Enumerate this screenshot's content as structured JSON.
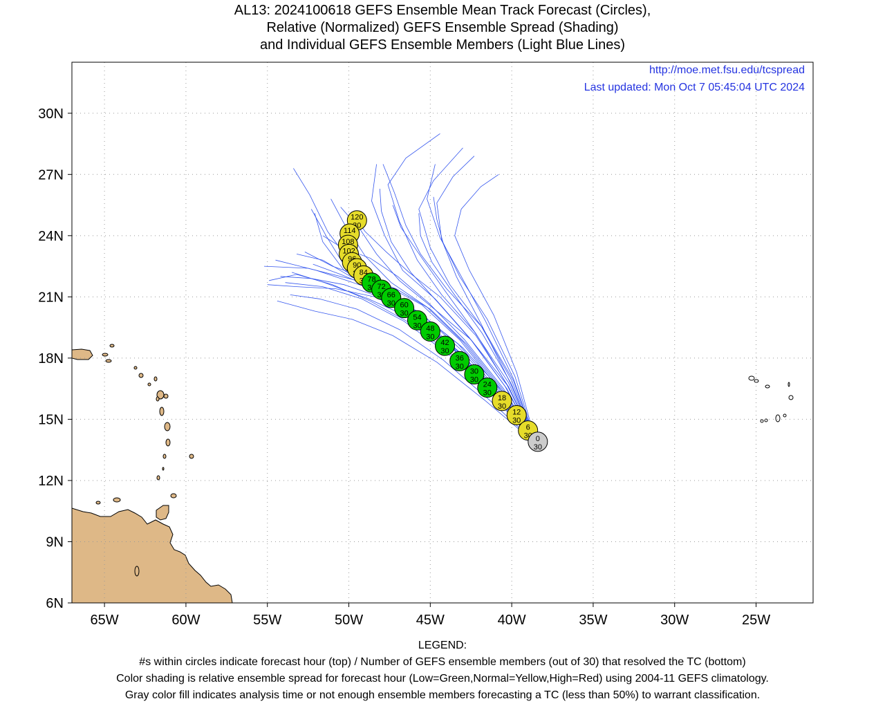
{
  "title": {
    "line1": "AL13: 2024100618 GEFS Ensemble Mean Track Forecast (Circles),",
    "line2": "Relative (Normalized) GEFS Ensemble Spread (Shading)",
    "line3": "and Individual GEFS Ensemble Members (Light Blue Lines)"
  },
  "url": "http://moe.met.fsu.edu/tcspread",
  "updated": "Last updated: Mon Oct 7 05:45:04 UTC 2024",
  "axes": {
    "lon_range": [
      -67,
      -21.5
    ],
    "lat_range": [
      6,
      32.5
    ],
    "lon_ticks": [
      -65,
      -60,
      -55,
      -50,
      -45,
      -40,
      -35,
      -30,
      -25
    ],
    "lon_labels": [
      "65W",
      "60W",
      "55W",
      "50W",
      "45W",
      "40W",
      "35W",
      "30W",
      "25W"
    ],
    "lat_ticks": [
      6,
      9,
      12,
      15,
      18,
      21,
      24,
      27,
      30
    ],
    "lat_labels": [
      "6N",
      "9N",
      "12N",
      "15N",
      "18N",
      "21N",
      "24N",
      "27N",
      "30N"
    ],
    "grid": true
  },
  "colors": {
    "green": "#00cc00",
    "yellow": "#e6dc2a",
    "gray": "#cccccc",
    "land": "#deb887",
    "member_line": "#3355ee"
  },
  "track": [
    {
      "hour": "0",
      "members": "30",
      "lon": -38.4,
      "lat": 13.9,
      "spread": "gray"
    },
    {
      "hour": "6",
      "members": "30",
      "lon": -39.0,
      "lat": 14.45,
      "spread": "yellow"
    },
    {
      "hour": "12",
      "members": "30",
      "lon": -39.7,
      "lat": 15.2,
      "spread": "yellow"
    },
    {
      "hour": "18",
      "members": "30",
      "lon": -40.6,
      "lat": 15.9,
      "spread": "yellow"
    },
    {
      "hour": "24",
      "members": "30",
      "lon": -41.5,
      "lat": 16.55,
      "spread": "green"
    },
    {
      "hour": "30",
      "members": "30",
      "lon": -42.3,
      "lat": 17.2,
      "spread": "green"
    },
    {
      "hour": "36",
      "members": "30",
      "lon": -43.2,
      "lat": 17.85,
      "spread": "green"
    },
    {
      "hour": "42",
      "members": "30",
      "lon": -44.1,
      "lat": 18.6,
      "spread": "green"
    },
    {
      "hour": "48",
      "members": "30",
      "lon": -45.0,
      "lat": 19.3,
      "spread": "green"
    },
    {
      "hour": "54",
      "members": "30",
      "lon": -45.8,
      "lat": 19.85,
      "spread": "green"
    },
    {
      "hour": "60",
      "members": "30",
      "lon": -46.6,
      "lat": 20.45,
      "spread": "green"
    },
    {
      "hour": "66",
      "members": "30",
      "lon": -47.4,
      "lat": 20.95,
      "spread": "green"
    },
    {
      "hour": "72",
      "members": "30",
      "lon": -48.0,
      "lat": 21.35,
      "spread": "green"
    },
    {
      "hour": "78",
      "members": "30",
      "lon": -48.6,
      "lat": 21.7,
      "spread": "green"
    },
    {
      "hour": "84",
      "members": "30",
      "lon": -49.1,
      "lat": 22.05,
      "spread": "yellow"
    },
    {
      "hour": "90",
      "members": "30",
      "lon": -49.5,
      "lat": 22.4,
      "spread": "yellow"
    },
    {
      "hour": "96",
      "members": "30",
      "lon": -49.8,
      "lat": 22.7,
      "spread": "yellow"
    },
    {
      "hour": "102",
      "members": "30",
      "lon": -50.0,
      "lat": 23.1,
      "spread": "yellow"
    },
    {
      "hour": "108",
      "members": "30",
      "lon": -50.05,
      "lat": 23.55,
      "spread": "yellow"
    },
    {
      "hour": "114",
      "members": "30",
      "lon": -49.95,
      "lat": 24.1,
      "spread": "yellow"
    },
    {
      "hour": "120",
      "members": "30",
      "lon": -49.5,
      "lat": 24.75,
      "spread": "yellow"
    }
  ],
  "members": [
    [
      [
        -38.5,
        13.8
      ],
      [
        -41,
        16.2
      ],
      [
        -43.5,
        18.5
      ],
      [
        -46,
        20.3
      ],
      [
        -49,
        21.5
      ],
      [
        -52,
        22.3
      ],
      [
        -54.5,
        22.8
      ]
    ],
    [
      [
        -38.5,
        13.8
      ],
      [
        -41.2,
        16.4
      ],
      [
        -44,
        18.8
      ],
      [
        -46.5,
        20.5
      ],
      [
        -49.5,
        21.8
      ],
      [
        -52.5,
        22.4
      ],
      [
        -55.2,
        22.5
      ]
    ],
    [
      [
        -38.5,
        13.8
      ],
      [
        -41,
        16.3
      ],
      [
        -43.8,
        18.6
      ],
      [
        -46.3,
        20
      ],
      [
        -48.8,
        20.9
      ],
      [
        -51.5,
        21.7
      ],
      [
        -53.5,
        22.2
      ]
    ],
    [
      [
        -38.5,
        13.8
      ],
      [
        -40.8,
        16.5
      ],
      [
        -43.2,
        18.9
      ],
      [
        -45.5,
        20.6
      ],
      [
        -47.8,
        21.6
      ],
      [
        -49.8,
        22.6
      ],
      [
        -51.3,
        24.2
      ],
      [
        -52.4,
        26
      ],
      [
        -53.4,
        27.3
      ]
    ],
    [
      [
        -38.5,
        13.8
      ],
      [
        -40.6,
        16.4
      ],
      [
        -43,
        18.8
      ],
      [
        -45.2,
        20.5
      ],
      [
        -47.4,
        21.7
      ],
      [
        -49,
        23
      ],
      [
        -50.3,
        24.6
      ],
      [
        -51.1,
        25.8
      ]
    ],
    [
      [
        -38.5,
        13.8
      ],
      [
        -40.4,
        16.6
      ],
      [
        -42.6,
        19
      ],
      [
        -44.7,
        20.9
      ],
      [
        -46.7,
        22.3
      ],
      [
        -47.8,
        24
      ],
      [
        -48.6,
        25.7
      ],
      [
        -48.3,
        27.5
      ]
    ],
    [
      [
        -38.5,
        13.8
      ],
      [
        -40.2,
        16.8
      ],
      [
        -42.3,
        19.3
      ],
      [
        -44.3,
        21.1
      ],
      [
        -45.8,
        22.8
      ],
      [
        -46.9,
        24.7
      ],
      [
        -47.6,
        26.5
      ],
      [
        -46.5,
        27.8
      ],
      [
        -44.4,
        29
      ]
    ],
    [
      [
        -38.5,
        13.8
      ],
      [
        -40,
        16.9
      ],
      [
        -41.9,
        19.6
      ],
      [
        -43.8,
        21.6
      ],
      [
        -45,
        23.4
      ],
      [
        -45.7,
        25.3
      ],
      [
        -44.8,
        26.7
      ],
      [
        -43,
        28.3
      ]
    ],
    [
      [
        -38.5,
        13.8
      ],
      [
        -39.8,
        17.1
      ],
      [
        -41.5,
        19.9
      ],
      [
        -43.2,
        22
      ],
      [
        -44.3,
        23.8
      ],
      [
        -44.6,
        25.6
      ],
      [
        -43.6,
        26.9
      ],
      [
        -42.3,
        27.9
      ]
    ],
    [
      [
        -38.5,
        13.8
      ],
      [
        -39.7,
        17.3
      ],
      [
        -41.1,
        20.1
      ],
      [
        -42.6,
        22.3
      ],
      [
        -43.5,
        24
      ],
      [
        -43.1,
        25.3
      ],
      [
        -41.9,
        26.4
      ],
      [
        -40.8,
        27
      ]
    ],
    [
      [
        -38.5,
        13.8
      ],
      [
        -39.9,
        16.9
      ],
      [
        -41.8,
        19.5
      ],
      [
        -44,
        21.4
      ],
      [
        -45.6,
        23.1
      ],
      [
        -46.5,
        24.5
      ],
      [
        -47.2,
        26.1
      ],
      [
        -47.9,
        27.5
      ]
    ],
    [
      [
        -38.5,
        13.8
      ],
      [
        -40.2,
        16.6
      ],
      [
        -42.5,
        18.9
      ],
      [
        -44.9,
        20.5
      ],
      [
        -46.9,
        21.8
      ],
      [
        -48.3,
        23.1
      ],
      [
        -49.3,
        24.3
      ],
      [
        -50.5,
        25.4
      ]
    ],
    [
      [
        -38.5,
        13.8
      ],
      [
        -40.5,
        16.3
      ],
      [
        -43,
        18.5
      ],
      [
        -45.5,
        20.1
      ],
      [
        -47.9,
        21.2
      ],
      [
        -49.9,
        22
      ],
      [
        -51.6,
        22.8
      ],
      [
        -53.2,
        23.1
      ]
    ],
    [
      [
        -38.5,
        13.8
      ],
      [
        -40.9,
        16
      ],
      [
        -43.6,
        18.1
      ],
      [
        -46.2,
        19.7
      ],
      [
        -48.7,
        20.8
      ],
      [
        -51,
        21.6
      ],
      [
        -53.2,
        22.1
      ],
      [
        -54.9,
        21.8
      ]
    ],
    [
      [
        -38.5,
        13.8
      ],
      [
        -41.3,
        15.9
      ],
      [
        -44.2,
        17.9
      ],
      [
        -46.9,
        19.4
      ],
      [
        -49.5,
        20.4
      ],
      [
        -51.8,
        20.9
      ],
      [
        -53.6,
        21.1
      ]
    ],
    [
      [
        -38.5,
        13.8
      ],
      [
        -41.6,
        15.9
      ],
      [
        -44.6,
        17.8
      ],
      [
        -47.3,
        19.1
      ],
      [
        -49.8,
        19.9
      ],
      [
        -52.1,
        20.3
      ],
      [
        -54.4,
        20.8
      ]
    ],
    [
      [
        -38.5,
        13.8
      ],
      [
        -40.7,
        16.2
      ],
      [
        -43.1,
        18.4
      ],
      [
        -45.3,
        20
      ],
      [
        -47.3,
        21
      ],
      [
        -49.1,
        21.8
      ],
      [
        -50.4,
        22.7
      ],
      [
        -51.4,
        24
      ],
      [
        -52.3,
        25.3
      ]
    ],
    [
      [
        -38.5,
        13.8
      ],
      [
        -40.3,
        16.5
      ],
      [
        -42.4,
        18.8
      ],
      [
        -44.5,
        20.7
      ],
      [
        -46.2,
        22.2
      ],
      [
        -47.4,
        23.7
      ],
      [
        -48,
        25.2
      ],
      [
        -48.1,
        26.3
      ]
    ],
    [
      [
        -38.5,
        13.8
      ],
      [
        -40,
        16.7
      ],
      [
        -41.8,
        19.2
      ],
      [
        -43.6,
        21.2
      ],
      [
        -44.9,
        22.7
      ],
      [
        -45.6,
        24
      ],
      [
        -45.7,
        25.1
      ]
    ],
    [
      [
        -38.5,
        13.8
      ],
      [
        -40.6,
        16.1
      ],
      [
        -43.2,
        18.3
      ],
      [
        -45.7,
        19.9
      ],
      [
        -48.1,
        21
      ],
      [
        -50.3,
        21.6
      ],
      [
        -52.3,
        21.9
      ],
      [
        -54.2,
        22
      ]
    ],
    [
      [
        -38.5,
        13.8
      ],
      [
        -40.4,
        16.3
      ],
      [
        -42.8,
        18.7
      ],
      [
        -45,
        20.4
      ],
      [
        -47.1,
        21.4
      ],
      [
        -49.2,
        22
      ],
      [
        -51,
        22.5
      ],
      [
        -52.7,
        23.2
      ]
    ],
    [
      [
        -38.5,
        13.8
      ],
      [
        -40.1,
        16.8
      ],
      [
        -41.9,
        19.7
      ],
      [
        -43.4,
        22
      ],
      [
        -44.2,
        23.6
      ],
      [
        -44.6,
        24.8
      ],
      [
        -44.8,
        25.9
      ]
    ],
    [
      [
        -38.5,
        13.8
      ],
      [
        -40.8,
        16.4
      ],
      [
        -43.3,
        18.7
      ],
      [
        -45.8,
        20.3
      ],
      [
        -48.2,
        21.3
      ],
      [
        -50.3,
        22.3
      ],
      [
        -51.6,
        23.7
      ],
      [
        -52.1,
        25.1
      ]
    ],
    [
      [
        -38.5,
        13.8
      ],
      [
        -41.1,
        16.1
      ],
      [
        -43.9,
        18.2
      ],
      [
        -46.6,
        19.8
      ],
      [
        -49.2,
        20.9
      ],
      [
        -51.6,
        21.5
      ],
      [
        -53.9,
        21.7
      ]
    ],
    [
      [
        -38.5,
        13.8
      ],
      [
        -40.3,
        16.7
      ],
      [
        -42.2,
        19.2
      ],
      [
        -44.1,
        21.3
      ],
      [
        -45.6,
        23
      ],
      [
        -46.8,
        24.4
      ],
      [
        -47.3,
        25.5
      ]
    ],
    [
      [
        -38.5,
        13.8
      ],
      [
        -40.5,
        16.5
      ],
      [
        -42.9,
        18.9
      ],
      [
        -45.1,
        20.7
      ],
      [
        -47,
        22
      ],
      [
        -48.7,
        22.9
      ],
      [
        -50.4,
        23.4
      ],
      [
        -51.6,
        24
      ]
    ],
    [
      [
        -38.5,
        13.8
      ],
      [
        -39.9,
        17
      ],
      [
        -41.6,
        19.8
      ],
      [
        -43.1,
        22
      ],
      [
        -44.4,
        23.9
      ],
      [
        -45.2,
        25.8
      ],
      [
        -44.7,
        27.5
      ]
    ],
    [
      [
        -38.5,
        13.8
      ],
      [
        -40.7,
        16.2
      ],
      [
        -43.4,
        18.4
      ],
      [
        -46,
        20
      ],
      [
        -48.4,
        21
      ],
      [
        -50.8,
        21.4
      ],
      [
        -53.2,
        21.5
      ],
      [
        -55,
        21.6
      ]
    ],
    [
      [
        -38.5,
        13.8
      ],
      [
        -40.2,
        16.6
      ],
      [
        -42.2,
        19.1
      ],
      [
        -44.4,
        21
      ],
      [
        -46.3,
        22.2
      ],
      [
        -47.7,
        23.2
      ],
      [
        -49,
        24.2
      ],
      [
        -49.8,
        25.1
      ]
    ],
    [
      [
        -38.5,
        13.8
      ],
      [
        -41,
        16.2
      ],
      [
        -43.6,
        18.5
      ],
      [
        -46.1,
        20.2
      ],
      [
        -48.4,
        21.4
      ],
      [
        -50.5,
        22.1
      ],
      [
        -52.2,
        22.6
      ]
    ]
  ],
  "legend": {
    "heading": "LEGEND:",
    "line1": "#s within circles indicate forecast hour (top) / Number of GEFS ensemble members (out of 30) that resolved the TC (bottom)",
    "line2": "Color shading is relative ensemble spread for forecast hour (Low=Green,Normal=Yellow,High=Red) using 2004-11 GEFS climatology.",
    "line3": "Gray color fill indicates analysis time or not enough ensemble members forecasting a TC (less than 50%) to warrant classification."
  }
}
